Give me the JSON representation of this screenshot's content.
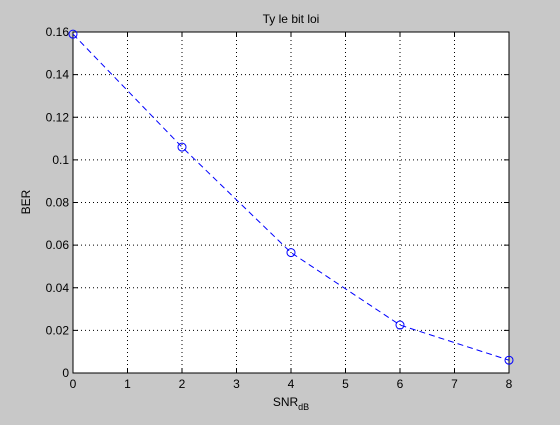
{
  "chart_data": {
    "type": "line",
    "title": "Ty le bit loi",
    "xlabel": "SNR",
    "xlabel_subscript": "dB",
    "ylabel": "BER",
    "xlim": [
      0,
      8
    ],
    "ylim": [
      0,
      0.16
    ],
    "x_ticks": [
      0,
      1,
      2,
      3,
      4,
      5,
      6,
      7,
      8
    ],
    "y_ticks": [
      0,
      0.02,
      0.04,
      0.06,
      0.08,
      0.1,
      0.12,
      0.14,
      0.16
    ],
    "x_tick_labels": [
      "0",
      "1",
      "2",
      "3",
      "4",
      "5",
      "6",
      "7",
      "8"
    ],
    "y_tick_labels": [
      "0",
      "0.02",
      "0.04",
      "0.06",
      "0.08",
      "0.1",
      "0.12",
      "0.14",
      "0.16"
    ],
    "grid": true,
    "series": [
      {
        "x": [
          0,
          2,
          4,
          6,
          8
        ],
        "y": [
          0.159,
          0.106,
          0.0565,
          0.0225,
          0.006
        ],
        "line_style": "dashed",
        "marker": "circle",
        "color": "#0000ff"
      }
    ]
  },
  "colors": {
    "figure_bg": "#c8c8c8",
    "axes_bg": "#ffffff",
    "axis": "#000000",
    "grid": "#000000",
    "series": "#0000ff"
  }
}
